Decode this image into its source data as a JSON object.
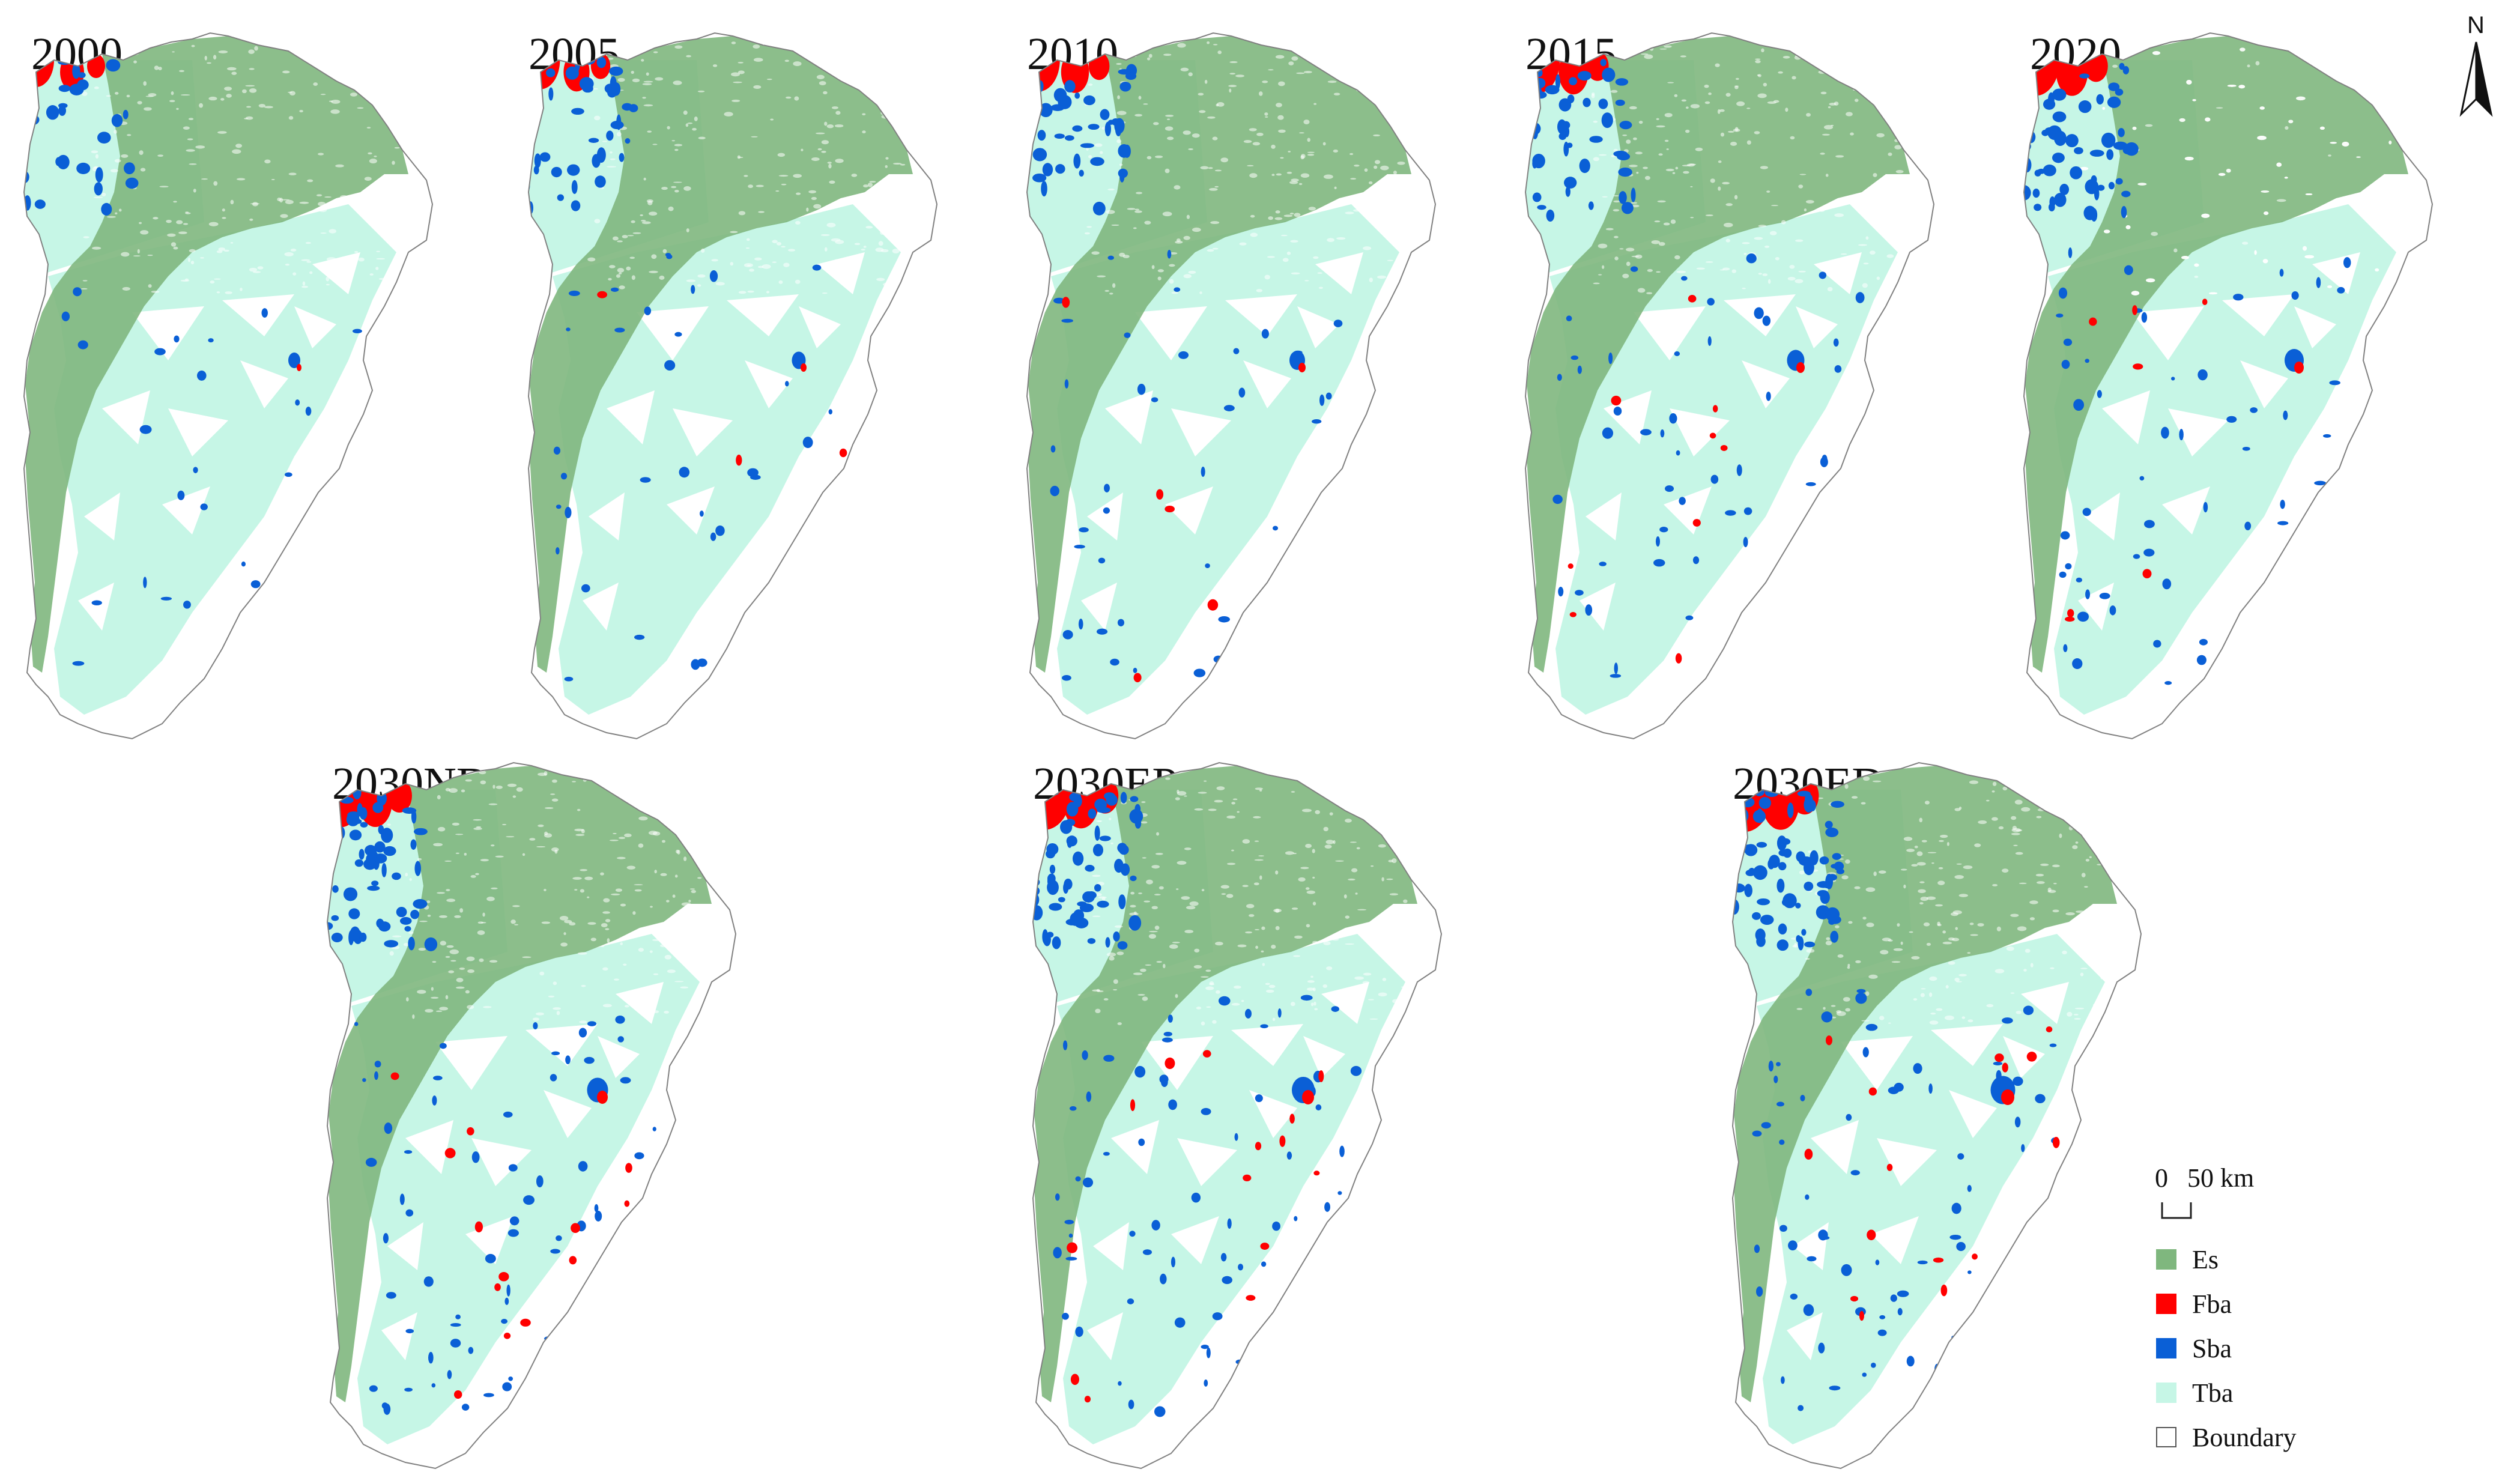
{
  "panels": [
    {
      "title": "2000",
      "variant": "A"
    },
    {
      "title": "2005",
      "variant": "B"
    },
    {
      "title": "2010",
      "variant": "C"
    },
    {
      "title": "2015",
      "variant": "D"
    },
    {
      "title": "2020",
      "variant": "E"
    },
    {
      "title": "2030ND",
      "variant": "F"
    },
    {
      "title": "2030EP",
      "variant": "G"
    },
    {
      "title": "2030ED",
      "variant": "H"
    }
  ],
  "legend": {
    "items": [
      {
        "label": "Es",
        "color": "#7fb77e"
      },
      {
        "label": "Fba",
        "color": "#ff0000"
      },
      {
        "label": "Sba",
        "color": "#0a5fd6"
      },
      {
        "label": "Tba",
        "color": "#c6f6e6"
      },
      {
        "label": "Boundary",
        "color": "#ffffff"
      }
    ]
  },
  "scale_bar": {
    "start": "0",
    "end": "50 km"
  },
  "north_arrow": {
    "label": "N"
  },
  "colors": {
    "es": "#7fb77e",
    "fba": "#ff0000",
    "sba": "#0a5fd6",
    "tba": "#c6f6e6",
    "boundary": "#808080"
  }
}
